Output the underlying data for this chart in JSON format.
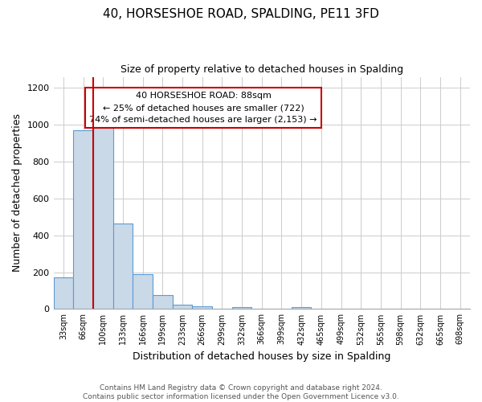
{
  "title": "40, HORSESHOE ROAD, SPALDING, PE11 3FD",
  "subtitle": "Size of property relative to detached houses in Spalding",
  "xlabel": "Distribution of detached houses by size in Spalding",
  "ylabel": "Number of detached properties",
  "bin_labels": [
    "33sqm",
    "66sqm",
    "100sqm",
    "133sqm",
    "166sqm",
    "199sqm",
    "233sqm",
    "266sqm",
    "299sqm",
    "332sqm",
    "366sqm",
    "399sqm",
    "432sqm",
    "465sqm",
    "499sqm",
    "532sqm",
    "565sqm",
    "598sqm",
    "632sqm",
    "665sqm",
    "698sqm"
  ],
  "bar_heights": [
    170,
    970,
    1000,
    465,
    190,
    75,
    25,
    15,
    0,
    10,
    0,
    0,
    10,
    0,
    0,
    0,
    0,
    0,
    0,
    0,
    0
  ],
  "bar_color": "#c9d9e8",
  "bar_edge_color": "#5b9bd5",
  "red_line_index": 2,
  "red_line_color": "#cc0000",
  "annotation_text": "40 HORSESHOE ROAD: 88sqm\n← 25% of detached houses are smaller (722)\n74% of semi-detached houses are larger (2,153) →",
  "annotation_box_color": "#ffffff",
  "annotation_box_edge_color": "#cc0000",
  "ylim": [
    0,
    1260
  ],
  "yticks": [
    0,
    200,
    400,
    600,
    800,
    1000,
    1200
  ],
  "footer_line1": "Contains HM Land Registry data © Crown copyright and database right 2024.",
  "footer_line2": "Contains public sector information licensed under the Open Government Licence v3.0."
}
